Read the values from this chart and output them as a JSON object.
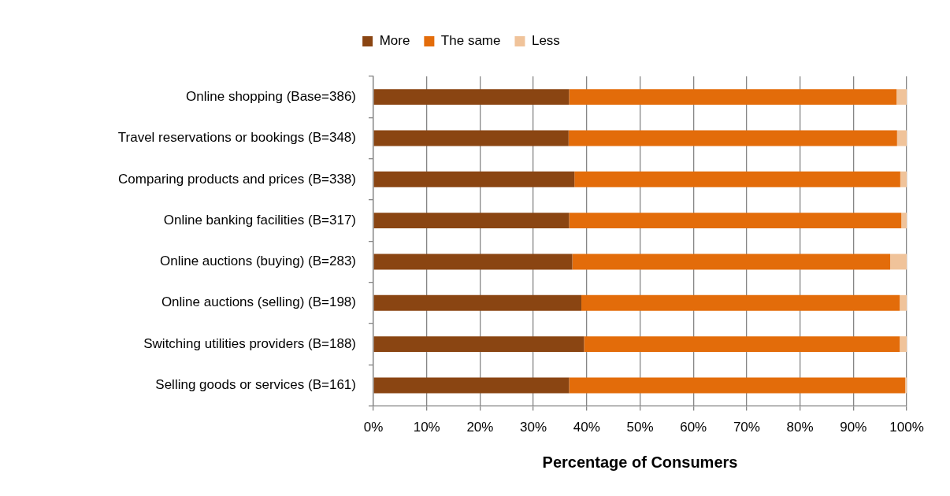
{
  "chart_data": {
    "type": "bar",
    "orientation": "horizontal",
    "stacked": true,
    "categories": [
      "Online shopping (Base=386)",
      "Travel reservations or bookings (B=348)",
      "Comparing products and prices (B=338)",
      "Online banking facilities (B=317)",
      "Online auctions (buying) (B=283)",
      "Online auctions (selling) (B=198)",
      "Switching utilities providers (B=188)",
      "Selling goods or services (B=161)"
    ],
    "series": [
      {
        "name": "More",
        "color": "#8a4512",
        "values": [
          36.7,
          36.6,
          37.7,
          36.7,
          37.3,
          39.0,
          39.5,
          36.7
        ]
      },
      {
        "name": "The same",
        "color": "#e36c0a",
        "values": [
          61.4,
          61.6,
          61.1,
          62.3,
          59.6,
          59.7,
          59.2,
          63.0
        ]
      },
      {
        "name": "Less",
        "color": "#f0c39a",
        "values": [
          1.9,
          1.8,
          1.2,
          1.0,
          3.1,
          1.3,
          1.3,
          0.3
        ]
      }
    ],
    "xlim": [
      0,
      100
    ],
    "xticks": [
      {
        "value": 0,
        "label": "0%"
      },
      {
        "value": 10,
        "label": "10%"
      },
      {
        "value": 20,
        "label": "20%"
      },
      {
        "value": 30,
        "label": "30%"
      },
      {
        "value": 40,
        "label": "40%"
      },
      {
        "value": 50,
        "label": "50%"
      },
      {
        "value": 60,
        "label": "60%"
      },
      {
        "value": 70,
        "label": "70%"
      },
      {
        "value": 80,
        "label": "80%"
      },
      {
        "value": 90,
        "label": "90%"
      },
      {
        "value": 100,
        "label": "100%"
      }
    ],
    "xlabel": "Percentage of Consumers",
    "grid": "x",
    "legend": "top"
  }
}
